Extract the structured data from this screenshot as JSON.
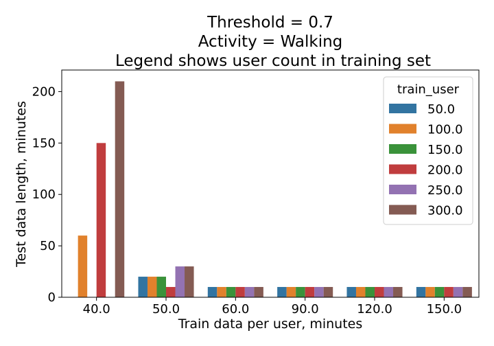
{
  "chart_data": {
    "type": "bar",
    "title_lines": [
      "Threshold = 0.7",
      "Activity = Walking",
      "Legend shows user count in training set"
    ],
    "xlabel": "Train data per user, minutes",
    "ylabel": "Test data length, minutes",
    "categories": [
      "40.0",
      "50.0",
      "60.0",
      "90.0",
      "120.0",
      "150.0"
    ],
    "ylim": [
      0,
      221
    ],
    "yticks": [
      0,
      50,
      100,
      150,
      200
    ],
    "legend": {
      "title": "train_user",
      "position": "top-right"
    },
    "series": [
      {
        "name": "50.0",
        "color": "#3274a1",
        "values": [
          0,
          20,
          10,
          10,
          10,
          10
        ]
      },
      {
        "name": "100.0",
        "color": "#e1812c",
        "values": [
          60,
          20,
          10,
          10,
          10,
          10
        ]
      },
      {
        "name": "150.0",
        "color": "#3a923a",
        "values": [
          0,
          20,
          10,
          10,
          10,
          10
        ]
      },
      {
        "name": "200.0",
        "color": "#c03d3e",
        "values": [
          150,
          10,
          10,
          10,
          10,
          10
        ]
      },
      {
        "name": "250.0",
        "color": "#9372b2",
        "values": [
          0,
          30,
          10,
          10,
          10,
          10
        ]
      },
      {
        "name": "300.0",
        "color": "#845b53",
        "values": [
          210,
          30,
          10,
          10,
          10,
          10
        ]
      }
    ],
    "grid": false
  }
}
